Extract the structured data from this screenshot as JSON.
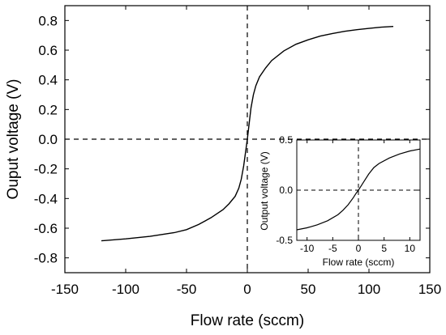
{
  "chart_data": [
    {
      "type": "line",
      "xlabel": "Flow rate (sccm)",
      "ylabel": "Ouput voltage (V)",
      "xlim": [
        -150,
        150
      ],
      "ylim": [
        -0.9,
        0.9
      ],
      "xticks": [
        -150,
        -100,
        -50,
        0,
        50,
        100,
        150
      ],
      "xtick_labels": [
        "-150",
        "-100",
        "-50",
        "0",
        "50",
        "100",
        "150"
      ],
      "yticks": [
        -0.8,
        -0.6,
        -0.4,
        -0.2,
        0.0,
        0.2,
        0.4,
        0.6,
        0.8
      ],
      "ytick_labels": [
        "-0.8",
        "-0.6",
        "-0.4",
        "-0.2",
        "0.0",
        "0.2",
        "0.4",
        "0.6",
        "0.8"
      ],
      "grid": false,
      "reference_lines": {
        "x": 0,
        "y": 0,
        "style": "dashed"
      },
      "series": [
        {
          "x": [
            -120,
            -100,
            -80,
            -60,
            -50,
            -40,
            -30,
            -20,
            -15,
            -10,
            -7,
            -5,
            -3,
            -2,
            -1,
            0,
            1,
            2,
            3,
            5,
            7,
            10,
            15,
            20,
            30,
            40,
            50,
            60,
            70,
            80,
            90,
            100,
            110,
            120
          ],
          "y": [
            -0.685,
            -0.672,
            -0.655,
            -0.63,
            -0.61,
            -0.575,
            -0.53,
            -0.475,
            -0.435,
            -0.385,
            -0.33,
            -0.27,
            -0.18,
            -0.12,
            -0.06,
            0.0,
            0.07,
            0.14,
            0.21,
            0.3,
            0.36,
            0.42,
            0.48,
            0.53,
            0.595,
            0.64,
            0.67,
            0.695,
            0.712,
            0.727,
            0.738,
            0.747,
            0.755,
            0.76
          ]
        }
      ]
    },
    {
      "type": "line",
      "xlabel": "Flow rate (sccm)",
      "ylabel": "Output voltage (V)",
      "xlim": [
        -12,
        12
      ],
      "ylim": [
        -0.5,
        0.5
      ],
      "xticks": [
        -10,
        -5,
        0,
        5,
        10
      ],
      "xtick_labels": [
        "-10",
        "-5",
        "0",
        "5",
        "10"
      ],
      "yticks": [
        -0.5,
        0.0,
        0.5
      ],
      "ytick_labels": [
        "-0.5",
        "0.0",
        "0.5"
      ],
      "grid": false,
      "reference_lines": {
        "x": 0,
        "y": 0,
        "style": "dashed"
      },
      "series": [
        {
          "x": [
            -12,
            -10,
            -8,
            -6,
            -4,
            -3,
            -2,
            -1,
            -0.5,
            0,
            0.5,
            1,
            2,
            3,
            4,
            6,
            8,
            10,
            12
          ],
          "y": [
            -0.395,
            -0.375,
            -0.345,
            -0.305,
            -0.245,
            -0.2,
            -0.145,
            -0.075,
            -0.035,
            0.0,
            0.04,
            0.08,
            0.16,
            0.225,
            0.265,
            0.32,
            0.36,
            0.39,
            0.41
          ]
        }
      ]
    }
  ]
}
